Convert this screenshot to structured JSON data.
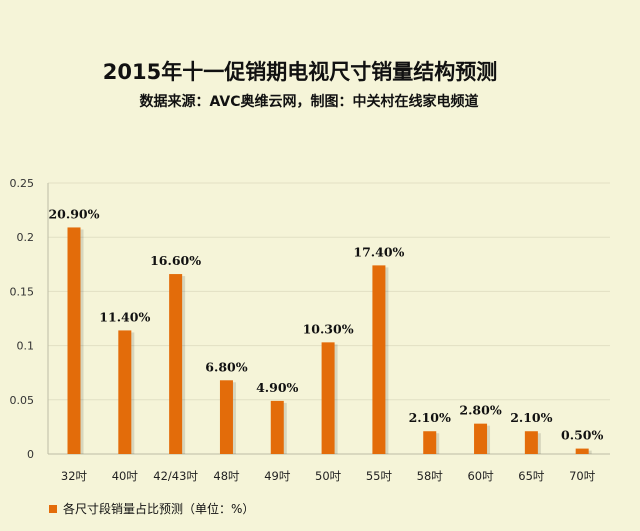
{
  "chart_data": {
    "type": "bar",
    "title": "2015年十一促销期电视尺寸销量结构预测",
    "subtitle": "数据来源：AVC奥维云网，制图：中关村在线家电频道",
    "categories": [
      "32吋",
      "40吋",
      "42/43吋",
      "48吋",
      "49吋",
      "50吋",
      "55吋",
      "58吋",
      "60吋",
      "65吋",
      "70吋"
    ],
    "values": [
      0.209,
      0.114,
      0.166,
      0.068,
      0.049,
      0.103,
      0.174,
      0.021,
      0.028,
      0.021,
      0.005
    ],
    "data_labels": [
      "20.90%",
      "11.40%",
      "16.60%",
      "6.80%",
      "4.90%",
      "10.30%",
      "17.40%",
      "2.10%",
      "2.80%",
      "2.10%",
      "0.50%"
    ],
    "ylim": [
      0,
      0.25
    ],
    "yticks": [
      "0",
      "0.05",
      "0.1",
      "0.15",
      "0.2",
      "0.25"
    ],
    "ytick_values": [
      0,
      0.05,
      0.1,
      0.15,
      0.2,
      0.25
    ],
    "legend": "各尺寸段销量占比预测（单位：%）",
    "legend_position": "bottom-left",
    "bar_color": "#e36c0a",
    "xlabel": "",
    "ylabel": ""
  }
}
